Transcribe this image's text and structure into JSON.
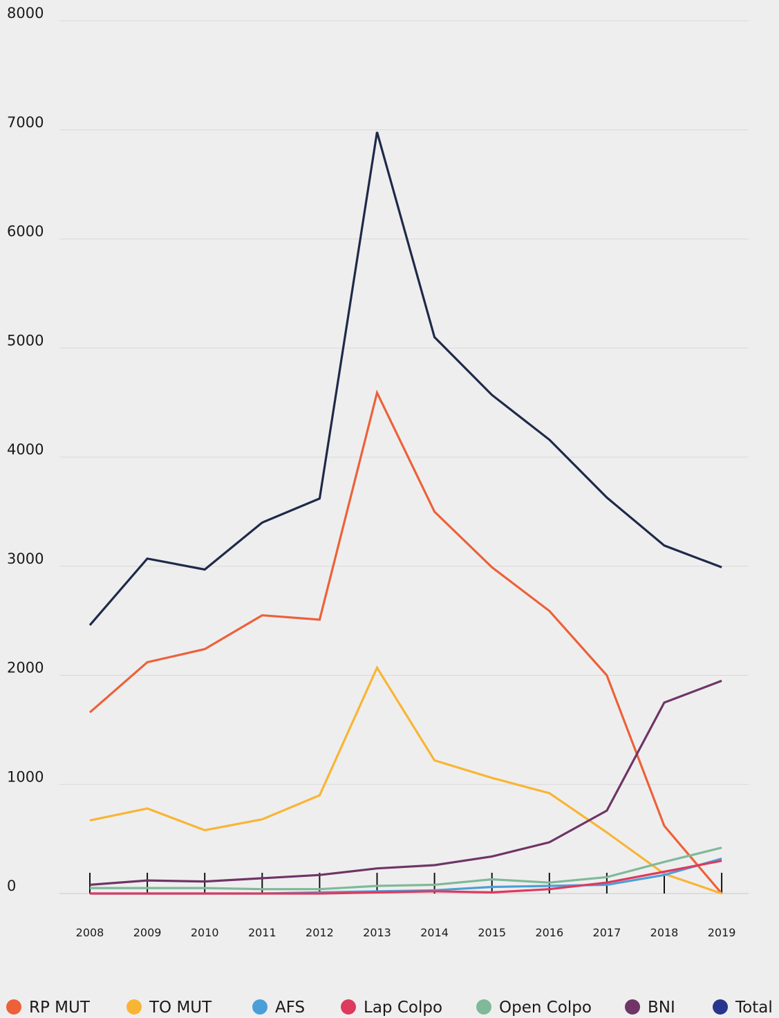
{
  "chart_data": {
    "type": "line",
    "title": "",
    "xlabel": "",
    "ylabel": "",
    "ylim": [
      0,
      8000
    ],
    "yticks": [
      0,
      1000,
      2000,
      3000,
      4000,
      5000,
      6000,
      7000,
      8000
    ],
    "grid": true,
    "legend_position": "bottom",
    "x": [
      "2008",
      "2009",
      "2010",
      "2011",
      "2012",
      "2013",
      "2014",
      "2015",
      "2016",
      "2017",
      "2018",
      "2019"
    ],
    "series": [
      {
        "name": "RP MUT",
        "color": "#ec613a",
        "values": [
          1660,
          2120,
          2240,
          2550,
          2510,
          4590,
          3500,
          2990,
          2590,
          2000,
          620,
          0
        ]
      },
      {
        "name": "TO MUT",
        "color": "#f8b535",
        "values": [
          670,
          780,
          580,
          680,
          900,
          2070,
          1220,
          1060,
          920,
          560,
          180,
          0
        ]
      },
      {
        "name": "AFS",
        "color": "#4a9fd8",
        "values": [
          0,
          0,
          0,
          0,
          10,
          20,
          30,
          60,
          70,
          80,
          170,
          320
        ]
      },
      {
        "name": "Lap Colpo",
        "color": "#dd3a5e",
        "values": [
          0,
          0,
          0,
          0,
          0,
          10,
          20,
          10,
          40,
          100,
          200,
          300
        ]
      },
      {
        "name": "Open Colpo",
        "color": "#7fb99a",
        "values": [
          50,
          50,
          50,
          40,
          40,
          70,
          80,
          130,
          100,
          150,
          290,
          420
        ]
      },
      {
        "name": "BNI",
        "color": "#6e3566",
        "values": [
          80,
          120,
          110,
          140,
          170,
          230,
          260,
          340,
          470,
          760,
          1750,
          1950
        ]
      },
      {
        "name": "Total",
        "color": "#1e2a4a",
        "legend_color": "#27358c",
        "values": [
          2460,
          3070,
          2970,
          3400,
          3620,
          6980,
          5100,
          4570,
          4160,
          3630,
          3190,
          2990
        ]
      }
    ]
  }
}
